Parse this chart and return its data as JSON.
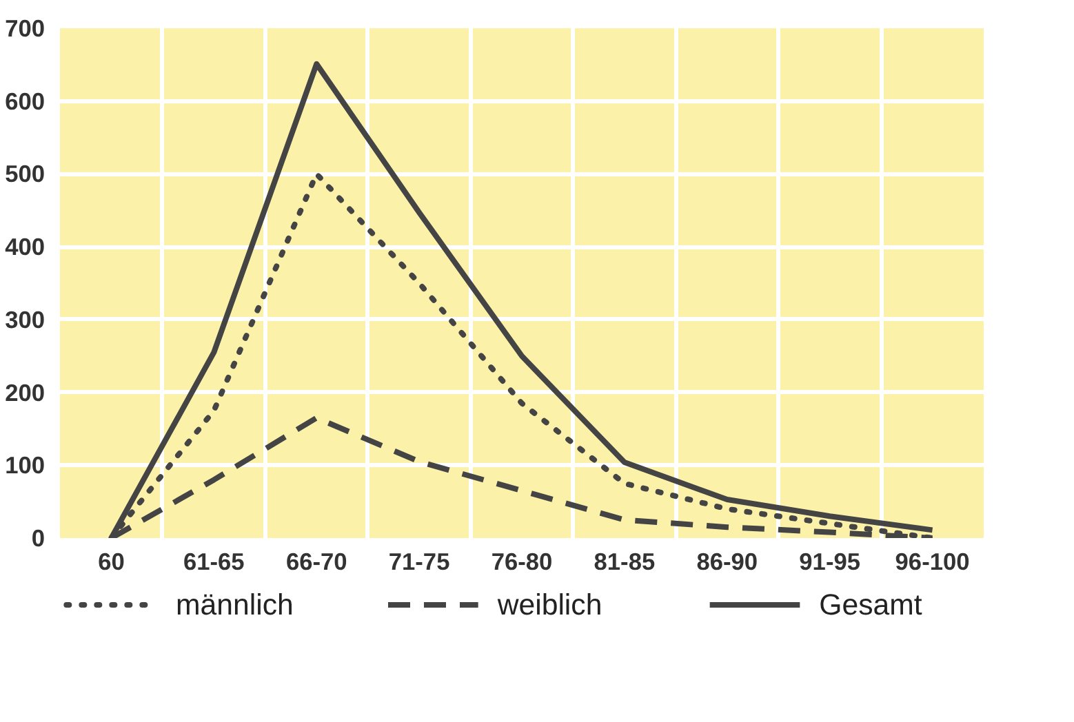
{
  "chart_data": {
    "type": "line",
    "categories": [
      "60",
      "61-65",
      "66-70",
      "71-75",
      "76-80",
      "81-85",
      "86-90",
      "91-95",
      "96-100"
    ],
    "ylim": [
      0,
      700
    ],
    "yticks": [
      0,
      100,
      200,
      300,
      400,
      500,
      600,
      700
    ],
    "grid": true,
    "legend": "bottom",
    "marker": "none",
    "series": [
      {
        "name": "männlich",
        "color": "#444444",
        "line_style": "dotted",
        "values": [
          0,
          175,
          500,
          350,
          185,
          75,
          40,
          20,
          0
        ]
      },
      {
        "name": "weiblich",
        "color": "#444444",
        "line_style": "dashed",
        "values": [
          0,
          80,
          165,
          105,
          65,
          25,
          15,
          8,
          0
        ]
      },
      {
        "name": "Gesamt",
        "color": "#444444",
        "line_style": "solid",
        "values": [
          0,
          255,
          651,
          447,
          250,
          104,
          53,
          30,
          11
        ]
      }
    ]
  }
}
